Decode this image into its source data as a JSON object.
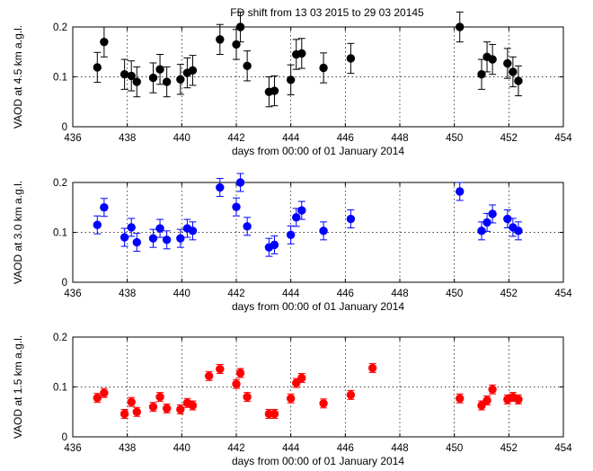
{
  "chart_data": [
    {
      "type": "scatter",
      "title": "FD shift from 13 03 2015 to 29 03 20145",
      "xlabel": "days from 00:00 of 01 January 2014",
      "ylabel": "VAOD at 4.5 km a.g.l.",
      "xlim": [
        436,
        454
      ],
      "ylim": [
        0,
        0.2
      ],
      "xticks": [
        "436",
        "438",
        "440",
        "442",
        "444",
        "446",
        "448",
        "450",
        "452",
        "454"
      ],
      "yticks": [
        "0",
        "0.1",
        "0.2"
      ],
      "grid": true,
      "color": "#000000",
      "points": [
        {
          "x": 436.9,
          "y": 0.119,
          "err": 0.03
        },
        {
          "x": 437.15,
          "y": 0.17,
          "err": 0.03
        },
        {
          "x": 437.9,
          "y": 0.105,
          "err": 0.03
        },
        {
          "x": 438.15,
          "y": 0.102,
          "err": 0.03
        },
        {
          "x": 438.35,
          "y": 0.09,
          "err": 0.03
        },
        {
          "x": 438.95,
          "y": 0.098,
          "err": 0.03
        },
        {
          "x": 439.2,
          "y": 0.115,
          "err": 0.03
        },
        {
          "x": 439.45,
          "y": 0.09,
          "err": 0.03
        },
        {
          "x": 439.95,
          "y": 0.095,
          "err": 0.03
        },
        {
          "x": 440.2,
          "y": 0.108,
          "err": 0.03
        },
        {
          "x": 440.4,
          "y": 0.113,
          "err": 0.03
        },
        {
          "x": 441.4,
          "y": 0.175,
          "err": 0.03
        },
        {
          "x": 442.0,
          "y": 0.165,
          "err": 0.03
        },
        {
          "x": 442.15,
          "y": 0.2,
          "err": 0.03
        },
        {
          "x": 442.4,
          "y": 0.122,
          "err": 0.03
        },
        {
          "x": 443.2,
          "y": 0.07,
          "err": 0.03
        },
        {
          "x": 443.4,
          "y": 0.072,
          "err": 0.03
        },
        {
          "x": 444.0,
          "y": 0.094,
          "err": 0.03
        },
        {
          "x": 444.2,
          "y": 0.145,
          "err": 0.03
        },
        {
          "x": 444.4,
          "y": 0.147,
          "err": 0.03
        },
        {
          "x": 445.2,
          "y": 0.118,
          "err": 0.03
        },
        {
          "x": 446.2,
          "y": 0.137,
          "err": 0.03
        },
        {
          "x": 450.2,
          "y": 0.2,
          "err": 0.03
        },
        {
          "x": 451.0,
          "y": 0.105,
          "err": 0.03
        },
        {
          "x": 451.2,
          "y": 0.14,
          "err": 0.03
        },
        {
          "x": 451.4,
          "y": 0.135,
          "err": 0.03
        },
        {
          "x": 451.95,
          "y": 0.127,
          "err": 0.03
        },
        {
          "x": 452.15,
          "y": 0.11,
          "err": 0.03
        },
        {
          "x": 452.35,
          "y": 0.092,
          "err": 0.03
        }
      ]
    },
    {
      "type": "scatter",
      "title": "",
      "xlabel": "days from 00:00 of 01 January 2014",
      "ylabel": "VAOD at 3.0 km a.g.l.",
      "xlim": [
        436,
        454
      ],
      "ylim": [
        0,
        0.2
      ],
      "xticks": [
        "436",
        "438",
        "440",
        "442",
        "444",
        "446",
        "448",
        "450",
        "452",
        "454"
      ],
      "yticks": [
        "0",
        "0.1",
        "0.2"
      ],
      "grid": true,
      "color": "#0000ff",
      "points": [
        {
          "x": 436.9,
          "y": 0.115,
          "err": 0.018
        },
        {
          "x": 437.15,
          "y": 0.15,
          "err": 0.018
        },
        {
          "x": 437.9,
          "y": 0.09,
          "err": 0.018
        },
        {
          "x": 438.15,
          "y": 0.11,
          "err": 0.018
        },
        {
          "x": 438.35,
          "y": 0.08,
          "err": 0.018
        },
        {
          "x": 438.95,
          "y": 0.088,
          "err": 0.018
        },
        {
          "x": 439.2,
          "y": 0.108,
          "err": 0.018
        },
        {
          "x": 439.45,
          "y": 0.085,
          "err": 0.018
        },
        {
          "x": 439.95,
          "y": 0.088,
          "err": 0.018
        },
        {
          "x": 440.2,
          "y": 0.108,
          "err": 0.018
        },
        {
          "x": 440.4,
          "y": 0.103,
          "err": 0.018
        },
        {
          "x": 441.4,
          "y": 0.19,
          "err": 0.018
        },
        {
          "x": 442.0,
          "y": 0.151,
          "err": 0.018
        },
        {
          "x": 442.15,
          "y": 0.2,
          "err": 0.018
        },
        {
          "x": 442.4,
          "y": 0.112,
          "err": 0.018
        },
        {
          "x": 443.2,
          "y": 0.07,
          "err": 0.018
        },
        {
          "x": 443.4,
          "y": 0.075,
          "err": 0.018
        },
        {
          "x": 444.0,
          "y": 0.095,
          "err": 0.018
        },
        {
          "x": 444.2,
          "y": 0.13,
          "err": 0.018
        },
        {
          "x": 444.4,
          "y": 0.144,
          "err": 0.018
        },
        {
          "x": 445.2,
          "y": 0.103,
          "err": 0.018
        },
        {
          "x": 446.2,
          "y": 0.127,
          "err": 0.018
        },
        {
          "x": 450.2,
          "y": 0.182,
          "err": 0.018
        },
        {
          "x": 451.0,
          "y": 0.103,
          "err": 0.018
        },
        {
          "x": 451.2,
          "y": 0.12,
          "err": 0.018
        },
        {
          "x": 451.4,
          "y": 0.137,
          "err": 0.018
        },
        {
          "x": 451.95,
          "y": 0.127,
          "err": 0.018
        },
        {
          "x": 452.15,
          "y": 0.11,
          "err": 0.018
        },
        {
          "x": 452.35,
          "y": 0.103,
          "err": 0.018
        }
      ]
    },
    {
      "type": "scatter",
      "title": "",
      "xlabel": "days from 00:00 of 01 January 2014",
      "ylabel": "VAOD at 1.5 km a.g.l.",
      "xlim": [
        436,
        454
      ],
      "ylim": [
        0,
        0.2
      ],
      "xticks": [
        "436",
        "438",
        "440",
        "442",
        "444",
        "446",
        "448",
        "450",
        "452",
        "454"
      ],
      "yticks": [
        "0",
        "0.1",
        "0.2"
      ],
      "grid": true,
      "color": "#ff0000",
      "points": [
        {
          "x": 436.9,
          "y": 0.078,
          "err": 0.009
        },
        {
          "x": 437.15,
          "y": 0.088,
          "err": 0.009
        },
        {
          "x": 437.9,
          "y": 0.046,
          "err": 0.009
        },
        {
          "x": 438.15,
          "y": 0.07,
          "err": 0.009
        },
        {
          "x": 438.35,
          "y": 0.05,
          "err": 0.009
        },
        {
          "x": 438.95,
          "y": 0.06,
          "err": 0.009
        },
        {
          "x": 439.2,
          "y": 0.08,
          "err": 0.009
        },
        {
          "x": 439.45,
          "y": 0.057,
          "err": 0.009
        },
        {
          "x": 439.95,
          "y": 0.055,
          "err": 0.009
        },
        {
          "x": 440.2,
          "y": 0.068,
          "err": 0.009
        },
        {
          "x": 440.4,
          "y": 0.063,
          "err": 0.009
        },
        {
          "x": 441.0,
          "y": 0.122,
          "err": 0.009
        },
        {
          "x": 441.4,
          "y": 0.136,
          "err": 0.009
        },
        {
          "x": 442.0,
          "y": 0.106,
          "err": 0.009
        },
        {
          "x": 442.15,
          "y": 0.128,
          "err": 0.009
        },
        {
          "x": 442.4,
          "y": 0.08,
          "err": 0.009
        },
        {
          "x": 443.2,
          "y": 0.046,
          "err": 0.009
        },
        {
          "x": 443.4,
          "y": 0.046,
          "err": 0.009
        },
        {
          "x": 444.0,
          "y": 0.077,
          "err": 0.009
        },
        {
          "x": 444.2,
          "y": 0.108,
          "err": 0.009
        },
        {
          "x": 444.4,
          "y": 0.118,
          "err": 0.009
        },
        {
          "x": 445.2,
          "y": 0.067,
          "err": 0.009
        },
        {
          "x": 446.2,
          "y": 0.084,
          "err": 0.009
        },
        {
          "x": 447.0,
          "y": 0.138,
          "err": 0.009
        },
        {
          "x": 450.2,
          "y": 0.077,
          "err": 0.009
        },
        {
          "x": 451.0,
          "y": 0.063,
          "err": 0.009
        },
        {
          "x": 451.2,
          "y": 0.073,
          "err": 0.009
        },
        {
          "x": 451.4,
          "y": 0.095,
          "err": 0.009
        },
        {
          "x": 451.95,
          "y": 0.075,
          "err": 0.009
        },
        {
          "x": 452.15,
          "y": 0.08,
          "err": 0.009
        },
        {
          "x": 452.35,
          "y": 0.075,
          "err": 0.009
        }
      ]
    }
  ]
}
